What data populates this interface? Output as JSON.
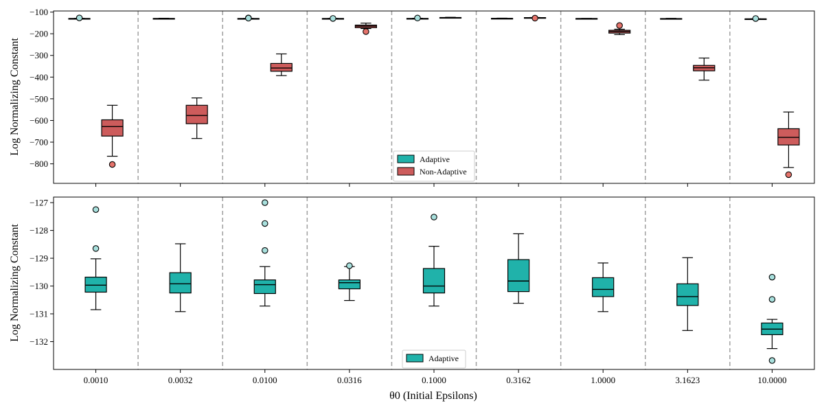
{
  "chart_data": [
    {
      "type": "box",
      "ylabel": "Log Normalizing Constant",
      "ylim": [
        -890,
        -95
      ],
      "yticks": [
        -100,
        -200,
        -300,
        -400,
        -500,
        -600,
        -700,
        -800
      ],
      "categories": [
        "0.0010",
        "0.0032",
        "0.0100",
        "0.0316",
        "0.1000",
        "0.3162",
        "1.0000",
        "3.1623",
        "10.0000"
      ],
      "legend": {
        "position": "lower center",
        "entries": [
          "Adaptive",
          "Non-Adaptive"
        ]
      },
      "colors": {
        "Adaptive": "#20b2aa",
        "Non-Adaptive": "#cd5c5c",
        "Adaptive_outlier": "#a8e0dd",
        "Non-Adaptive_outlier": "#e5736b"
      },
      "series": [
        {
          "name": "Adaptive",
          "boxes": [
            {
              "whislo": -131,
              "q1": -130.5,
              "med": -130,
              "q3": -129.6,
              "whishi": -129,
              "fliers": [
                -127
              ]
            },
            {
              "whislo": -131,
              "q1": -130.3,
              "med": -129.9,
              "q3": -129.5,
              "whishi": -128.5,
              "fliers": []
            },
            {
              "whislo": -131,
              "q1": -130.3,
              "med": -130,
              "q3": -129.7,
              "whishi": -129.3,
              "fliers": [
                -127,
                -128
              ]
            },
            {
              "whislo": -130.5,
              "q1": -130.1,
              "med": -129.9,
              "q3": -129.7,
              "whishi": -129.3,
              "fliers": [
                -129.3
              ]
            },
            {
              "whislo": -130.7,
              "q1": -130.2,
              "med": -130,
              "q3": -129.4,
              "whishi": -128.5,
              "fliers": [
                -127.5
              ]
            },
            {
              "whislo": -130.6,
              "q1": -130.2,
              "med": -129.8,
              "q3": -129.0,
              "whishi": -128.1,
              "fliers": []
            },
            {
              "whislo": -130.9,
              "q1": -130.4,
              "med": -130.1,
              "q3": -129.7,
              "whishi": -129.2,
              "fliers": []
            },
            {
              "whislo": -131.6,
              "q1": -130.7,
              "med": -130.4,
              "q3": -129.9,
              "whishi": -129.0,
              "fliers": []
            },
            {
              "whislo": -132.2,
              "q1": -131.8,
              "med": -131.6,
              "q3": -131.3,
              "whishi": -131.2,
              "fliers": [
                -129.7
              ]
            }
          ]
        },
        {
          "name": "Non-Adaptive",
          "boxes": [
            {
              "whislo": -765,
              "q1": -672,
              "med": -628,
              "q3": -597,
              "whishi": -530,
              "fliers": [
                -803
              ]
            },
            {
              "whislo": -683,
              "q1": -615,
              "med": -577,
              "q3": -530,
              "whishi": -496,
              "fliers": []
            },
            {
              "whislo": -393,
              "q1": -373,
              "med": -358,
              "q3": -337,
              "whishi": -293,
              "fliers": []
            },
            {
              "whislo": -176,
              "q1": -172,
              "med": -165,
              "q3": -160,
              "whishi": -151,
              "fliers": [
                -190
              ]
            },
            {
              "whislo": -128,
              "q1": -127,
              "med": -126,
              "q3": -125,
              "whishi": -124,
              "fliers": []
            },
            {
              "whislo": -127,
              "q1": -126.5,
              "med": -126,
              "q3": -125.5,
              "whishi": -125,
              "fliers": [
                -128
              ]
            },
            {
              "whislo": -204,
              "q1": -197,
              "med": -190,
              "q3": -184,
              "whishi": -179,
              "fliers": [
                -162
              ]
            },
            {
              "whislo": -414,
              "q1": -371,
              "med": -357,
              "q3": -346,
              "whishi": -312,
              "fliers": []
            },
            {
              "whislo": -817,
              "q1": -713,
              "med": -678,
              "q3": -638,
              "whishi": -561,
              "fliers": [
                -850
              ]
            }
          ]
        }
      ]
    },
    {
      "type": "box",
      "xlabel": "θ0 (Initial Epsilons)",
      "ylabel": "Log Normalizing Constant",
      "ylim": [
        -133,
        -126.8
      ],
      "yticks": [
        -127,
        -128,
        -129,
        -130,
        -131,
        -132
      ],
      "categories": [
        "0.0010",
        "0.0032",
        "0.0100",
        "0.0316",
        "0.1000",
        "0.3162",
        "1.0000",
        "3.1623",
        "10.0000"
      ],
      "legend": {
        "position": "lower center",
        "entries": [
          "Adaptive"
        ]
      },
      "colors": {
        "Adaptive": "#20b2aa",
        "Adaptive_outlier": "#a8e0dd"
      },
      "series": [
        {
          "name": "Adaptive",
          "boxes": [
            {
              "whislo": -130.85,
              "q1": -130.22,
              "med": -129.97,
              "q3": -129.68,
              "whishi": -129.02,
              "fliers": [
                -127.25,
                -128.65
              ]
            },
            {
              "whislo": -130.92,
              "q1": -130.25,
              "med": -129.92,
              "q3": -129.52,
              "whishi": -128.48,
              "fliers": []
            },
            {
              "whislo": -130.72,
              "q1": -130.27,
              "med": -129.95,
              "q3": -129.78,
              "whishi": -129.3,
              "fliers": [
                -127.0,
                -127.75,
                -128.72
              ]
            },
            {
              "whislo": -130.52,
              "q1": -130.1,
              "med": -129.88,
              "q3": -129.78,
              "whishi": -129.3,
              "fliers": [
                -129.27
              ]
            },
            {
              "whislo": -130.72,
              "q1": -130.25,
              "med": -130.0,
              "q3": -129.37,
              "whishi": -128.57,
              "fliers": [
                -127.52
              ]
            },
            {
              "whislo": -130.62,
              "q1": -130.2,
              "med": -129.82,
              "q3": -129.05,
              "whishi": -128.12,
              "fliers": []
            },
            {
              "whislo": -130.92,
              "q1": -130.38,
              "med": -130.12,
              "q3": -129.7,
              "whishi": -129.17,
              "fliers": []
            },
            {
              "whislo": -131.6,
              "q1": -130.7,
              "med": -130.38,
              "q3": -129.92,
              "whishi": -128.98,
              "fliers": []
            },
            {
              "whislo": -132.25,
              "q1": -131.75,
              "med": -131.55,
              "q3": -131.33,
              "whishi": -131.2,
              "fliers": [
                -129.68,
                -130.48,
                -132.68
              ]
            }
          ]
        }
      ]
    }
  ]
}
